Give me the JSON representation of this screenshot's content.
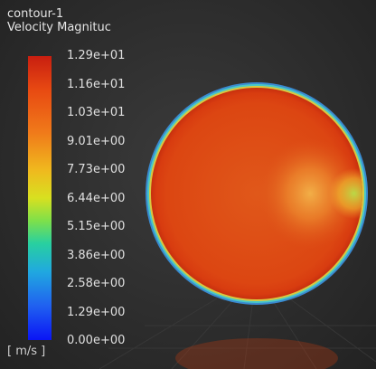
{
  "contour": {
    "name": "contour-1",
    "quantity": "Velocity Magnituc",
    "unit": "[ m/s ]"
  },
  "colorbar": {
    "ticks": [
      "1.29e+01",
      "1.16e+01",
      "1.03e+01",
      "9.01e+00",
      "7.73e+00",
      "6.44e+00",
      "5.15e+00",
      "3.86e+00",
      "2.58e+00",
      "1.29e+00",
      "0.00e+00"
    ]
  },
  "colors": {
    "background": "#2e2e2e",
    "max": "#c81e10",
    "min": "#0a14f5",
    "disk_main": "#dd4a12",
    "disk_highlight": "#f0a032"
  }
}
